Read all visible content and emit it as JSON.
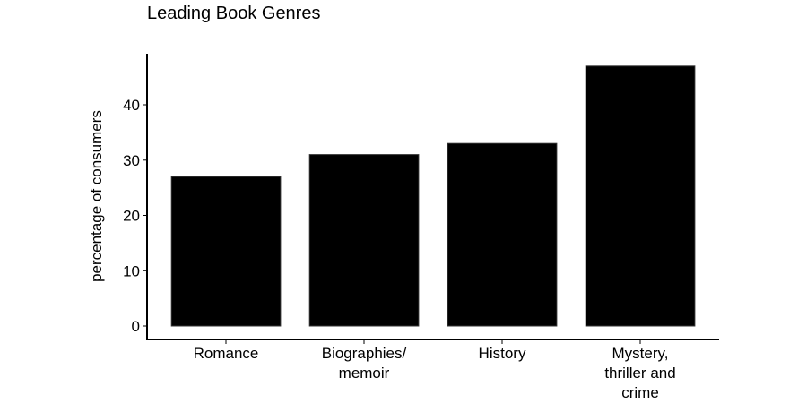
{
  "chart_data": {
    "type": "bar",
    "title": "Leading Book Genres",
    "xlabel": "",
    "ylabel": "percentage of consumers",
    "categories": [
      "Romance",
      "Biographies/\nmemoir",
      "History",
      "Mystery,\nthriller and\ncrime"
    ],
    "values": [
      27,
      31,
      33,
      47
    ],
    "ylim": [
      0,
      50
    ],
    "yticks": [
      0,
      10,
      20,
      30,
      40
    ],
    "bar_color": "#000000",
    "grid": false,
    "legend": "none"
  }
}
